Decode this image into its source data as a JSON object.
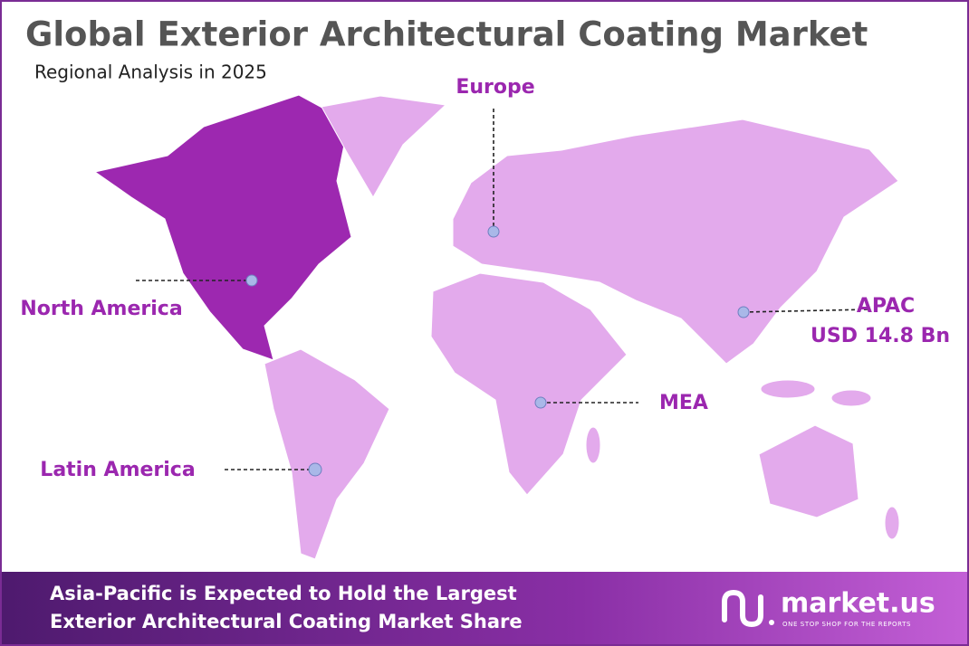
{
  "header": {
    "title": "Global Exterior Architectural Coating Market",
    "subtitle": "Regional Analysis in 2025"
  },
  "regions": {
    "europe": {
      "label": "Europe"
    },
    "north_america": {
      "label": "North America"
    },
    "apac": {
      "label": "APAC",
      "value": "USD 14.8 Bn"
    },
    "mea": {
      "label": "MEA"
    },
    "latin_america": {
      "label": "Latin America"
    }
  },
  "footer": {
    "lines": [
      "Asia-Pacific is Expected to Hold the Largest",
      "Exterior Architectural Coating Market Share"
    ],
    "logo": "market.us",
    "tagline": "ONE STOP SHOP FOR THE REPORTS"
  }
}
